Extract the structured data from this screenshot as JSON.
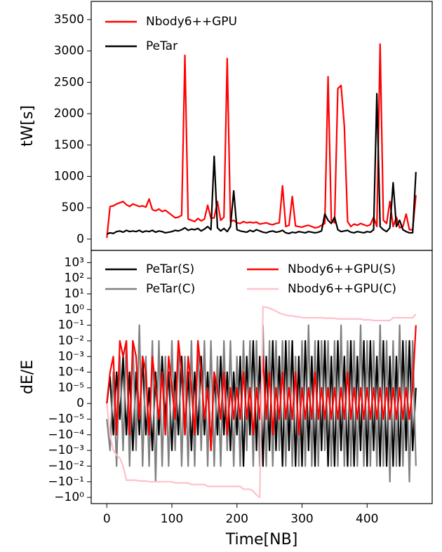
{
  "chart_data": [
    {
      "type": "line",
      "ylabel": "tW[s]",
      "legend": "upper left",
      "xlim": [
        -24,
        500
      ],
      "ylim": [
        -180,
        3790
      ],
      "yticks": [
        0,
        500,
        1000,
        1500,
        2000,
        2500,
        3000,
        3500
      ],
      "x": [
        0,
        5,
        10,
        15,
        20,
        25,
        30,
        35,
        40,
        45,
        50,
        55,
        60,
        65,
        70,
        75,
        80,
        85,
        90,
        95,
        100,
        105,
        110,
        115,
        120,
        125,
        130,
        135,
        140,
        145,
        150,
        155,
        160,
        165,
        170,
        175,
        180,
        185,
        190,
        195,
        200,
        205,
        210,
        215,
        220,
        225,
        230,
        235,
        240,
        245,
        250,
        255,
        260,
        265,
        270,
        275,
        280,
        285,
        290,
        295,
        300,
        305,
        310,
        315,
        320,
        325,
        330,
        335,
        340,
        345,
        350,
        355,
        360,
        365,
        370,
        375,
        380,
        385,
        390,
        395,
        400,
        405,
        410,
        415,
        420,
        425,
        430,
        435,
        440,
        445,
        450,
        455,
        460,
        465,
        470,
        475
      ],
      "series": [
        {
          "name": "Nbody6++GPU",
          "color": "#ff0000",
          "values": [
            20,
            520,
            530,
            560,
            580,
            600,
            550,
            520,
            560,
            540,
            520,
            530,
            510,
            640,
            470,
            450,
            480,
            440,
            460,
            420,
            380,
            340,
            350,
            380,
            2930,
            320,
            300,
            280,
            330,
            290,
            320,
            540,
            330,
            340,
            600,
            300,
            350,
            2880,
            280,
            300,
            260,
            250,
            280,
            260,
            270,
            260,
            270,
            240,
            250,
            260,
            240,
            230,
            250,
            260,
            850,
            200,
            220,
            680,
            210,
            200,
            190,
            210,
            220,
            200,
            180,
            190,
            220,
            250,
            2590,
            300,
            260,
            2400,
            2450,
            1800,
            280,
            200,
            240,
            220,
            250,
            230,
            210,
            230,
            350,
            200,
            3110,
            300,
            250,
            600,
            200,
            350,
            180,
            200,
            400,
            150,
            150,
            700
          ]
        },
        {
          "name": "PeTar",
          "color": "#000000",
          "values": [
            80,
            100,
            90,
            120,
            130,
            110,
            140,
            120,
            130,
            120,
            140,
            110,
            130,
            120,
            140,
            110,
            130,
            120,
            100,
            110,
            120,
            140,
            130,
            150,
            180,
            140,
            160,
            150,
            170,
            130,
            160,
            200,
            150,
            1320,
            180,
            130,
            170,
            120,
            200,
            770,
            150,
            130,
            120,
            110,
            140,
            120,
            150,
            130,
            110,
            100,
            120,
            130,
            110,
            120,
            140,
            100,
            90,
            110,
            100,
            120,
            110,
            100,
            120,
            110,
            100,
            110,
            130,
            400,
            300,
            250,
            350,
            150,
            120,
            130,
            140,
            110,
            100,
            120,
            110,
            100,
            120,
            110,
            150,
            2320,
            200,
            150,
            120,
            180,
            900,
            200,
            300,
            150,
            120,
            100,
            100,
            1070
          ]
        }
      ]
    },
    {
      "type": "line",
      "ylabel": "dE/E",
      "xlabel": "Time[NB]",
      "legend": "upper center",
      "symlog": true,
      "linthresh": 1e-05,
      "xlim": [
        -24,
        500
      ],
      "xticks": [
        0,
        100,
        200,
        300,
        400
      ],
      "ylim": [
        -2.5,
        6000
      ],
      "yticks": [
        {
          "value": 1000,
          "label": "10³"
        },
        {
          "value": 100,
          "label": "10²"
        },
        {
          "value": 10,
          "label": "10¹"
        },
        {
          "value": 1,
          "label": "10⁰"
        },
        {
          "value": 0.1,
          "label": "10⁻¹"
        },
        {
          "value": 0.01,
          "label": "10⁻²"
        },
        {
          "value": 0.001,
          "label": "10⁻³"
        },
        {
          "value": 0.0001,
          "label": "10⁻⁴"
        },
        {
          "value": 1e-05,
          "label": "10⁻⁵"
        },
        0,
        {
          "value": -1e-05,
          "label": "−10⁻⁵"
        },
        {
          "value": -0.0001,
          "label": "−10⁻⁴"
        },
        {
          "value": -0.001,
          "label": "−10⁻³"
        },
        {
          "value": -0.01,
          "label": "−10⁻²"
        },
        {
          "value": -0.1,
          "label": "−10⁻¹"
        },
        {
          "value": -1,
          "label": "−10⁰"
        }
      ],
      "x": [
        0,
        5,
        10,
        15,
        20,
        25,
        30,
        35,
        40,
        45,
        50,
        55,
        60,
        65,
        70,
        75,
        80,
        85,
        90,
        95,
        100,
        105,
        110,
        115,
        120,
        125,
        130,
        135,
        140,
        145,
        150,
        155,
        160,
        165,
        170,
        175,
        180,
        185,
        190,
        195,
        200,
        205,
        210,
        215,
        220,
        225,
        230,
        235,
        240,
        245,
        250,
        255,
        260,
        265,
        270,
        275,
        280,
        285,
        290,
        295,
        300,
        305,
        310,
        315,
        320,
        325,
        330,
        335,
        340,
        345,
        350,
        355,
        360,
        365,
        370,
        375,
        380,
        385,
        390,
        395,
        400,
        405,
        410,
        415,
        420,
        425,
        430,
        435,
        440,
        445,
        450,
        455,
        460,
        465,
        470,
        475
      ],
      "series": [
        {
          "name": "PeTar(S)",
          "color": "#000000",
          "values": [
            0,
            5e-05,
            -0.0001,
            0.0001,
            -1e-05,
            0.001,
            -0.0001,
            0.0001,
            -0.001,
            0.0001,
            -0.0001,
            0.001,
            -0.0001,
            1e-05,
            -0.001,
            0.0001,
            -0.0001,
            0.001,
            -1e-05,
            0.0001,
            -0.001,
            0.0001,
            -0.0001,
            0.001,
            -0.0001,
            0.0001,
            -0.001,
            0.0001,
            -0.0001,
            0.001,
            -0.0001,
            0.0001,
            -0.001,
            0.0001,
            -0.0001,
            0.001,
            -0.0001,
            0.0001,
            -0.001,
            0.0001,
            -0.0001,
            0.001,
            -0.01,
            0.001,
            -0.0001,
            0.01,
            -0.001,
            0.001,
            -0.01,
            0.001,
            -0.001,
            0.01,
            -0.001,
            0.001,
            -0.01,
            0.01,
            -0.001,
            0.01,
            -0.01,
            0.001,
            -0.01,
            0.01,
            -0.001,
            0.001,
            -0.01,
            0.01,
            -0.001,
            0.01,
            -0.01,
            0.001,
            -0.01,
            0.01,
            -0.001,
            0.001,
            -0.01,
            0.01,
            -0.01,
            0.001,
            -0.001,
            0.01,
            -0.01,
            0.01,
            -0.001,
            0.001,
            -0.01,
            0.01,
            -0.01,
            0.001,
            -0.01,
            0.001,
            -0.01,
            0.01,
            -0.001,
            0.01,
            -0.001,
            1e-05
          ]
        },
        {
          "name": "PeTar(C)",
          "color": "#808080",
          "values": [
            -1e-05,
            -0.001,
            0.0001,
            -0.01,
            0.001,
            -0.001,
            0.01,
            -0.01,
            0.01,
            -0.001,
            0.1,
            -0.01,
            0.001,
            -0.01,
            0.01,
            -0.1,
            0.01,
            -0.01,
            0.001,
            -0.01,
            0.01,
            -0.001,
            0.01,
            -0.01,
            0.001,
            -0.01,
            0.01,
            -0.01,
            0.01,
            -0.001,
            0.01,
            -0.01,
            0.01,
            -0.01,
            0.001,
            -0.01,
            0.01,
            -0.001,
            0.01,
            -0.01,
            0.001,
            -0.01,
            0.01,
            -0.001,
            0.01,
            -0.01,
            0.01,
            -0.01,
            0.1,
            -0.01,
            0.01,
            -0.01,
            0.01,
            -0.001,
            0.01,
            -0.01,
            0.01,
            -0.01,
            0.001,
            -0.01,
            0.01,
            -0.01,
            0.1,
            -0.01,
            0.01,
            -0.01,
            0.01,
            -0.001,
            0.01,
            -0.01,
            0.01,
            -0.01,
            0.1,
            -0.01,
            0.01,
            -0.01,
            0.01,
            -0.01,
            0.1,
            -0.01,
            0.01,
            -0.01,
            0.01,
            -0.01,
            0.1,
            -0.01,
            0.01,
            -0.1,
            0.01,
            -0.01,
            0.1,
            -0.01,
            0.01,
            -0.1,
            0.01,
            -0.01
          ]
        },
        {
          "name": "Nbody6++GPU(S)",
          "color": "#ff0000",
          "values": [
            0,
            0.0001,
            0.001,
            -0.0001,
            0.01,
            0.001,
            0.01,
            -0.0001,
            0.01,
            0.001,
            -1e-05,
            0.001,
            0.0001,
            -0.0001,
            0.001,
            1e-05,
            -1e-05,
            0.0001,
            -0.0001,
            0.001,
            1e-05,
            -1e-05,
            0.01,
            0.0001,
            -0.0001,
            0.001,
            1e-05,
            -0.0001,
            0.01,
            0.0001,
            -1e-05,
            1e-05,
            -0.001,
            0.0001,
            1e-05,
            -1e-05,
            0.0001,
            -0.0001,
            1e-05,
            -1e-05,
            1e-05,
            -1e-05,
            0.0001,
            -1e-05,
            1e-05,
            -0.0001,
            1e-05,
            -1e-05,
            0.001,
            -1e-05,
            0.0001,
            -0.0001,
            1e-05,
            -1e-05,
            0.0001,
            -1e-05,
            1e-05,
            -1e-05,
            0.0001,
            -0.0001,
            1e-05,
            -1e-05,
            1e-05,
            -1e-05,
            0.0001,
            -1e-05,
            1e-05,
            -1e-05,
            1e-05,
            -1e-05,
            1e-05,
            -1e-05,
            1e-05,
            -1e-05,
            0.0001,
            -1e-05,
            1e-05,
            -1e-05,
            1e-05,
            -1e-05,
            1e-05,
            -1e-05,
            1e-05,
            -1e-05,
            1e-05,
            -1e-05,
            1e-05,
            -1e-05,
            1e-05,
            -1e-05,
            1e-05,
            -1e-05,
            1e-05,
            -1e-05,
            1e-05,
            0.1
          ]
        },
        {
          "name": "Nbody6++GPU(C)",
          "color": "#ffc0cb",
          "values": [
            0,
            -0.0001,
            -0.001,
            -0.002,
            -0.003,
            -0.01,
            -0.08,
            -0.08,
            -0.08,
            -0.08,
            -0.09,
            -0.09,
            -0.09,
            -0.1,
            -0.1,
            -0.1,
            -0.1,
            -0.1,
            -0.1,
            -0.1,
            -0.1,
            -0.12,
            -0.12,
            -0.12,
            -0.12,
            -0.12,
            -0.15,
            -0.15,
            -0.15,
            -0.15,
            -0.15,
            -0.2,
            -0.2,
            -0.2,
            -0.2,
            -0.2,
            -0.2,
            -0.2,
            -0.2,
            -0.2,
            -0.2,
            -0.2,
            -0.3,
            -0.3,
            -0.3,
            -0.4,
            -0.7,
            -1,
            1.5,
            1.4,
            1.2,
            1,
            0.8,
            0.6,
            0.5,
            0.45,
            0.4,
            0.4,
            0.35,
            0.35,
            0.3,
            0.3,
            0.3,
            0.3,
            0.3,
            0.3,
            0.3,
            0.28,
            0.28,
            0.28,
            0.28,
            0.25,
            0.25,
            0.25,
            0.25,
            0.25,
            0.25,
            0.25,
            0.25,
            0.22,
            0.22,
            0.22,
            0.2,
            0.2,
            0.2,
            0.2,
            0.2,
            0.2,
            0.3,
            0.3,
            0.3,
            0.3,
            0.3,
            0.3,
            0.3,
            0.5
          ]
        }
      ]
    }
  ]
}
